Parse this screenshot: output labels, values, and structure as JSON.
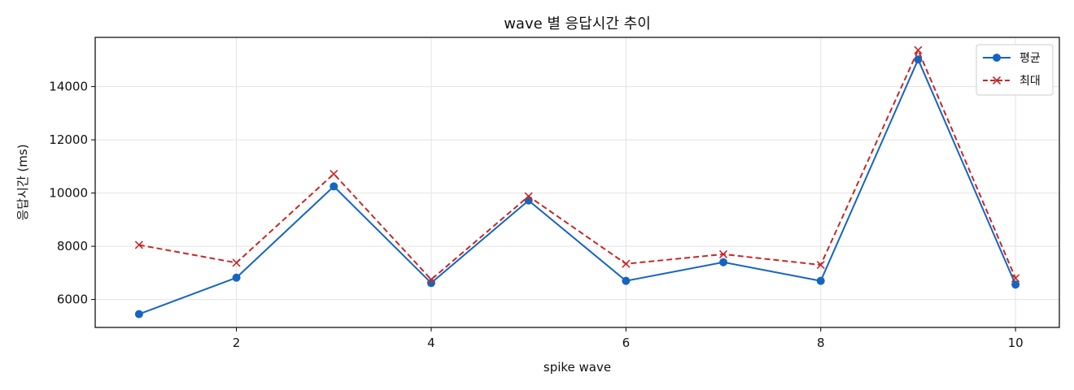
{
  "chart_data": {
    "type": "line",
    "title": "wave 별 응답시간 추이",
    "xlabel": "spike wave",
    "ylabel": "응답시간 (ms)",
    "x": [
      1,
      2,
      3,
      4,
      5,
      6,
      7,
      8,
      9,
      10
    ],
    "xlim": [
      0.55,
      10.45
    ],
    "ylim": [
      4950,
      15850
    ],
    "xticks": [
      2,
      4,
      6,
      8,
      10
    ],
    "yticks": [
      6000,
      8000,
      10000,
      12000,
      14000
    ],
    "grid": true,
    "legend_position": "top-right",
    "series": [
      {
        "name": "평균",
        "color": "#1565c0",
        "line_style": "solid",
        "marker": "circle",
        "values": [
          5450,
          6820,
          10250,
          6620,
          9720,
          6700,
          7400,
          6700,
          15020,
          6560
        ]
      },
      {
        "name": "최대",
        "color": "#c62828",
        "line_style": "dashed",
        "marker": "x",
        "values": [
          8050,
          7380,
          10720,
          6750,
          9880,
          7340,
          7700,
          7300,
          15370,
          6800
        ]
      }
    ]
  }
}
